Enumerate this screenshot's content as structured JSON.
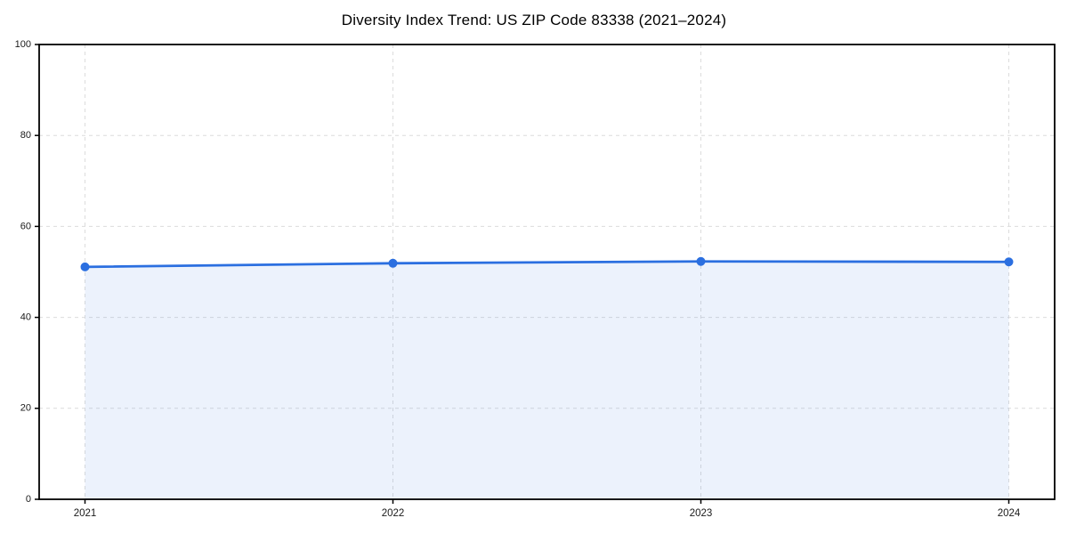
{
  "chart_data": {
    "type": "area",
    "title": "Diversity Index Trend: US ZIP Code 83338 (2021–2024)",
    "x": [
      2021,
      2022,
      2023,
      2024
    ],
    "values": [
      51.1,
      51.9,
      52.3,
      52.2
    ],
    "series_name": "Diversity Index",
    "xlabel": "",
    "ylabel": "",
    "ylim": [
      0,
      100
    ],
    "yticks": [
      0,
      20,
      40,
      60,
      80,
      100
    ],
    "xtick_labels": [
      "2021",
      "2022",
      "2023",
      "2024"
    ],
    "grid": "dashed",
    "legend_position": "none",
    "colors": {
      "line": "#2b6fe0",
      "marker": "#2b6fe0",
      "fill": "#2b6fe0",
      "fill_opacity": 0.09,
      "grid": "#dcdcdc",
      "axis": "#000000",
      "tick_text": "#1a1a1a",
      "background": "#ffffff"
    }
  }
}
